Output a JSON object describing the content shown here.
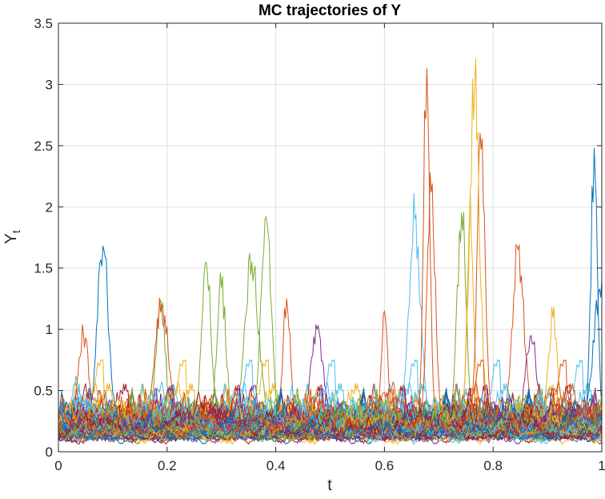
{
  "chart_data": {
    "type": "line",
    "title": "MC trajectories of Y",
    "xlabel": "t",
    "ylabel": "Y",
    "ylabel_subscript": "t",
    "xlim": [
      0,
      1
    ],
    "ylim": [
      0,
      3.5
    ],
    "grid": true,
    "x_ticks": [
      "0",
      "0.2",
      "0.4",
      "0.6",
      "0.8",
      "1"
    ],
    "y_ticks": [
      "0",
      "0.5",
      "1",
      "1.5",
      "2",
      "2.5",
      "3",
      "3.5"
    ],
    "palette": [
      "#0072BD",
      "#D95319",
      "#EDB120",
      "#7E2F8E",
      "#77AC30",
      "#4DBEEE",
      "#A2142F"
    ],
    "trajectory_count": 100,
    "trajectory_samples": 500,
    "typical_level": 0.2,
    "peaks": [
      {
        "color": "#0072BD",
        "t": 0.082,
        "y": 1.68
      },
      {
        "color": "#D95319",
        "t": 0.045,
        "y": 0.97
      },
      {
        "color": "#77AC30",
        "t": 0.188,
        "y": 1.24
      },
      {
        "color": "#D95319",
        "t": 0.19,
        "y": 1.2
      },
      {
        "color": "#77AC30",
        "t": 0.272,
        "y": 1.55
      },
      {
        "color": "#77AC30",
        "t": 0.3,
        "y": 1.34
      },
      {
        "color": "#77AC30",
        "t": 0.355,
        "y": 1.55
      },
      {
        "color": "#77AC30",
        "t": 0.382,
        "y": 1.92
      },
      {
        "color": "#D95319",
        "t": 0.42,
        "y": 1.25
      },
      {
        "color": "#7E2F8E",
        "t": 0.475,
        "y": 1.0
      },
      {
        "color": "#D95319",
        "t": 0.6,
        "y": 1.15
      },
      {
        "color": "#4DBEEE",
        "t": 0.655,
        "y": 1.9
      },
      {
        "color": "#D95319",
        "t": 0.677,
        "y": 3.13
      },
      {
        "color": "#D95319",
        "t": 0.686,
        "y": 2.12
      },
      {
        "color": "#77AC30",
        "t": 0.742,
        "y": 1.95
      },
      {
        "color": "#EDB120",
        "t": 0.758,
        "y": 2.1
      },
      {
        "color": "#EDB120",
        "t": 0.766,
        "y": 2.99
      },
      {
        "color": "#D95319",
        "t": 0.778,
        "y": 2.47
      },
      {
        "color": "#D95319",
        "t": 0.845,
        "y": 1.65
      },
      {
        "color": "#7E2F8E",
        "t": 0.87,
        "y": 0.95
      },
      {
        "color": "#EDB120",
        "t": 0.91,
        "y": 1.1
      },
      {
        "color": "#0072BD",
        "t": 0.985,
        "y": 2.48
      },
      {
        "color": "#0072BD",
        "t": 0.995,
        "y": 1.33
      }
    ]
  }
}
